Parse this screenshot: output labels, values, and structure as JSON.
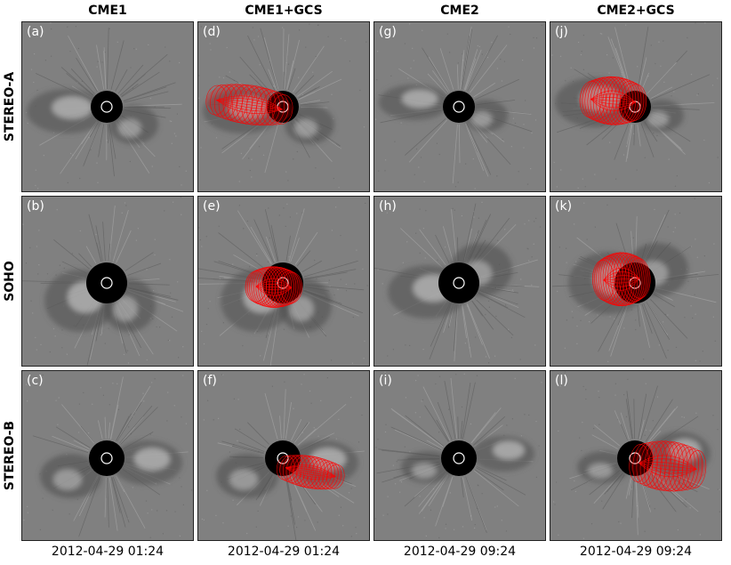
{
  "columns": [
    {
      "title": "CME1",
      "date": "2012-04-29 01:24"
    },
    {
      "title": "CME1+GCS",
      "date": "2012-04-29 01:24"
    },
    {
      "title": "CME2",
      "date": "2012-04-29 09:24"
    },
    {
      "title": "CME2+GCS",
      "date": "2012-04-29 09:24"
    }
  ],
  "rows": [
    {
      "title": "STEREO-A"
    },
    {
      "title": "SOHO"
    },
    {
      "title": "STEREO-B"
    }
  ],
  "panels": [
    {
      "label": "(a)",
      "col": 0,
      "row": 0,
      "gcs": false
    },
    {
      "label": "(d)",
      "col": 1,
      "row": 0,
      "gcs": true
    },
    {
      "label": "(g)",
      "col": 2,
      "row": 0,
      "gcs": false
    },
    {
      "label": "(j)",
      "col": 3,
      "row": 0,
      "gcs": true
    },
    {
      "label": "(b)",
      "col": 0,
      "row": 1,
      "gcs": false
    },
    {
      "label": "(e)",
      "col": 1,
      "row": 1,
      "gcs": true
    },
    {
      "label": "(h)",
      "col": 2,
      "row": 1,
      "gcs": false
    },
    {
      "label": "(k)",
      "col": 3,
      "row": 1,
      "gcs": true
    },
    {
      "label": "(c)",
      "col": 0,
      "row": 2,
      "gcs": false
    },
    {
      "label": "(f)",
      "col": 1,
      "row": 2,
      "gcs": true
    },
    {
      "label": "(i)",
      "col": 2,
      "row": 2,
      "gcs": false
    },
    {
      "label": "(l)",
      "col": 3,
      "row": 2,
      "gcs": true
    }
  ],
  "colors": {
    "background": "#808080",
    "occulter": "#000000",
    "sun_circle": "#ffffff",
    "gcs_mesh": "#ff0000",
    "label": "#ffffff"
  }
}
